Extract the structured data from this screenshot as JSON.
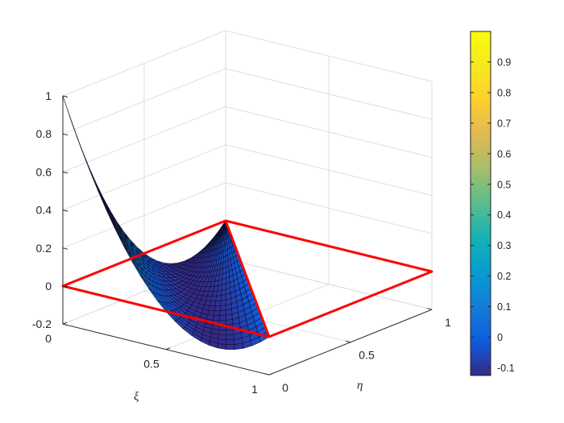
{
  "chart_data": {
    "type": "surface",
    "title": "",
    "xlabel": "ξ",
    "ylabel": "η",
    "zlabel": "",
    "xlim": [
      0,
      1
    ],
    "ylim": [
      0,
      1
    ],
    "zlim": [
      -0.2,
      1
    ],
    "x_ticks": [
      "0",
      "0.5",
      "1"
    ],
    "y_ticks": [
      "0",
      "0.5",
      "1"
    ],
    "z_ticks": [
      "-0.2",
      "0",
      "0.2",
      "0.4",
      "0.6",
      "0.8",
      "1"
    ],
    "grid": true,
    "surface": {
      "description": "shape function over triangle: z = (1 - ξ - η)(1 - 2ξ - 2η)",
      "domain": "triangle with vertices (0,0), (1,0), (0,1)",
      "corner_values": [
        {
          "xi": 0,
          "eta": 0,
          "z": 1
        },
        {
          "xi": 1,
          "eta": 0,
          "z": 0
        },
        {
          "xi": 0,
          "eta": 1,
          "z": 0
        }
      ],
      "min_value": -0.125
    },
    "outline": {
      "color": "#ff0000",
      "description": "unit square outline at z = 0 and triangle hypotenuse"
    },
    "surface_color": "#3a3bb3",
    "colorbar": {
      "ticks": [
        "-0.1",
        "0",
        "0.1",
        "0.2",
        "0.3",
        "0.4",
        "0.5",
        "0.6",
        "0.7",
        "0.8",
        "0.9"
      ],
      "range": [
        -0.125,
        1
      ],
      "colormap": "parula"
    }
  }
}
